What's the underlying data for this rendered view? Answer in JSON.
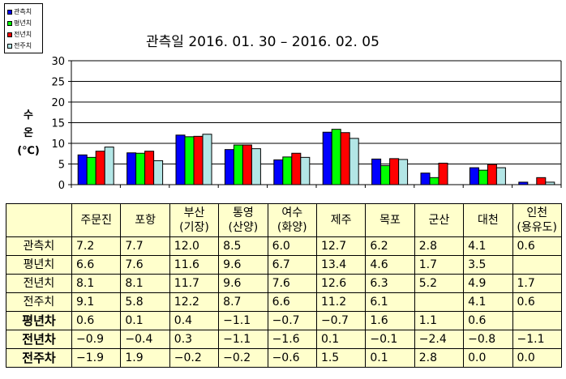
{
  "chart_data": {
    "type": "bar",
    "title": "관측일 2016. 01. 30 – 2016. 02. 05",
    "ylabel": [
      "수",
      "온",
      "(℃)"
    ],
    "ylim": [
      0,
      30
    ],
    "yticks": [
      0,
      5,
      10,
      15,
      20,
      25,
      30
    ],
    "grid": true,
    "legend_position": "top-left",
    "categories": [
      "주문진",
      "포항",
      "부산\n(기장)",
      "통영\n(산양)",
      "여수\n(화양)",
      "제주",
      "목포",
      "군산",
      "대천",
      "인천\n(용유도)"
    ],
    "series": [
      {
        "name": "관측치",
        "color": "#0000ff",
        "values": [
          7.2,
          7.7,
          12.0,
          8.5,
          6.0,
          12.7,
          6.2,
          2.8,
          4.1,
          0.6
        ]
      },
      {
        "name": "평년치",
        "color": "#00ff00",
        "values": [
          6.6,
          7.6,
          11.6,
          9.6,
          6.7,
          13.4,
          4.6,
          1.7,
          3.5,
          null
        ]
      },
      {
        "name": "전년치",
        "color": "#ff0000",
        "values": [
          8.1,
          8.1,
          11.7,
          9.6,
          7.6,
          12.6,
          6.3,
          5.2,
          4.9,
          1.7
        ]
      },
      {
        "name": "전주치",
        "color": "#b3e6e6",
        "values": [
          9.1,
          5.8,
          12.2,
          8.7,
          6.6,
          11.2,
          6.1,
          null,
          4.1,
          0.6
        ]
      }
    ]
  },
  "legend": [
    {
      "label": "관측치",
      "color": "#0000ff"
    },
    {
      "label": "평년치",
      "color": "#00ff00"
    },
    {
      "label": "전년치",
      "color": "#ff0000"
    },
    {
      "label": "전주치",
      "color": "#b3e6e6"
    }
  ],
  "table": {
    "headers": [
      "주문진",
      "포항",
      "부산\n(기장)",
      "통영\n(산양)",
      "여수\n(화양)",
      "제주",
      "목포",
      "군산",
      "대천",
      "인천\n(용유도)"
    ],
    "rows": [
      {
        "label": "관측치",
        "cells": [
          "7.2",
          "7.7",
          "12.0",
          "8.5",
          "6.0",
          "12.7",
          "6.2",
          "2.8",
          "4.1",
          "0.6"
        ]
      },
      {
        "label": "평년치",
        "cells": [
          "6.6",
          "7.6",
          "11.6",
          "9.6",
          "6.7",
          "13.4",
          "4.6",
          "1.7",
          "3.5",
          ""
        ]
      },
      {
        "label": "전년치",
        "cells": [
          "8.1",
          "8.1",
          "11.7",
          "9.6",
          "7.6",
          "12.6",
          "6.3",
          "5.2",
          "4.9",
          "1.7"
        ]
      },
      {
        "label": "전주치",
        "cells": [
          "9.1",
          "5.8",
          "12.2",
          "8.7",
          "6.6",
          "11.2",
          "6.1",
          "",
          "4.1",
          "0.6"
        ]
      },
      {
        "label": "평년차",
        "cells": [
          "0.6",
          "0.1",
          "0.4",
          "−1.1",
          "−0.7",
          "−0.7",
          "1.6",
          "1.1",
          "0.6",
          ""
        ]
      },
      {
        "label": "전년차",
        "cells": [
          "−0.9",
          "−0.4",
          "0.3",
          "−1.1",
          "−1.6",
          "0.1",
          "−0.1",
          "−2.4",
          "−0.8",
          "−1.1"
        ]
      },
      {
        "label": "전주차",
        "cells": [
          "−1.9",
          "1.9",
          "−0.2",
          "−0.2",
          "−0.6",
          "1.5",
          "0.1",
          "2.8",
          "0.0",
          "0.0"
        ]
      }
    ]
  }
}
